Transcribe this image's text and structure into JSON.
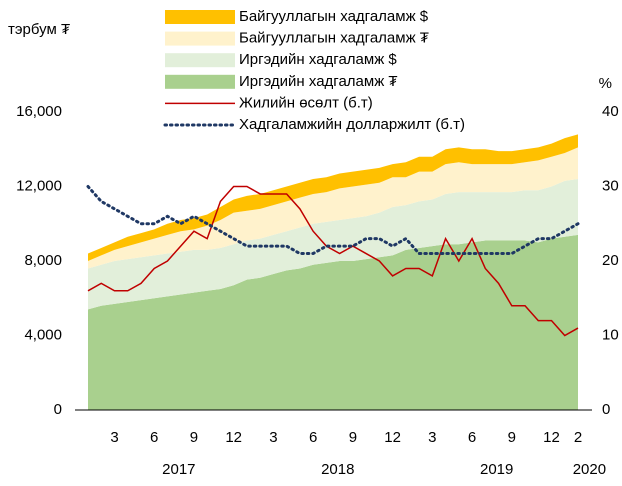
{
  "chart_data": {
    "type": "stacked_area_line",
    "y_label": "тэрбум ₮",
    "y2_label": "%",
    "categories": [
      null,
      null,
      "3",
      null,
      null,
      "6",
      null,
      null,
      "9",
      null,
      null,
      "12",
      null,
      null,
      "3",
      null,
      null,
      "6",
      null,
      null,
      "9",
      null,
      null,
      "12",
      null,
      null,
      "3",
      null,
      null,
      "6",
      null,
      null,
      "9",
      null,
      null,
      "12",
      null,
      "2"
    ],
    "years": [
      "2017",
      "2018",
      "2019",
      "2020"
    ],
    "ylim": [
      0,
      16000
    ],
    "yticks": [
      0,
      {
        "value": 4000,
        "label": "4,000"
      },
      {
        "value": 8000,
        "label": "8,000"
      },
      {
        "value": 12000,
        "label": "12,000"
      },
      {
        "value": 16000,
        "label": "16,000"
      }
    ],
    "y2lim": [
      0,
      40
    ],
    "y2ticks": [
      0,
      10,
      20,
      30,
      40
    ],
    "series": [
      {
        "name": "Иргэдийн хадгаламж ₮",
        "color": "#a9d08e",
        "kind": "area",
        "values": [
          5400,
          5600,
          5700,
          5800,
          5900,
          6000,
          6100,
          6200,
          6300,
          6400,
          6500,
          6700,
          7000,
          7100,
          7300,
          7500,
          7600,
          7800,
          7900,
          8000,
          8000,
          8100,
          8200,
          8300,
          8600,
          8700,
          8800,
          8900,
          8900,
          9000,
          9100,
          9100,
          9100,
          9100,
          9000,
          9200,
          9300,
          9400
        ]
      },
      {
        "name": "Иргэдийн хадгаламж $",
        "color": "#e2efda",
        "kind": "area",
        "values": [
          2200,
          2200,
          2300,
          2300,
          2300,
          2300,
          2300,
          2300,
          2300,
          2200,
          2200,
          2200,
          2100,
          2100,
          2100,
          2100,
          2200,
          2200,
          2200,
          2200,
          2300,
          2300,
          2400,
          2600,
          2400,
          2500,
          2500,
          2700,
          2800,
          2700,
          2600,
          2600,
          2600,
          2700,
          2800,
          2800,
          3000,
          3000
        ]
      },
      {
        "name": "Байгууллагын хадгаламж ₮",
        "color": "#fff2cc",
        "kind": "area",
        "values": [
          400,
          500,
          600,
          700,
          800,
          900,
          1000,
          1100,
          1100,
          1300,
          1500,
          1700,
          1600,
          1600,
          1600,
          1600,
          1600,
          1600,
          1600,
          1700,
          1700,
          1700,
          1600,
          1600,
          1500,
          1600,
          1500,
          1600,
          1600,
          1500,
          1500,
          1500,
          1500,
          1500,
          1600,
          1600,
          1500,
          1700
        ]
      },
      {
        "name": "Байгууллагын хадгаламж $",
        "color": "#ffc000",
        "kind": "area",
        "values": [
          400,
          400,
          400,
          500,
          500,
          500,
          600,
          600,
          600,
          600,
          700,
          700,
          800,
          800,
          800,
          800,
          800,
          800,
          800,
          800,
          800,
          800,
          800,
          700,
          800,
          800,
          800,
          800,
          800,
          800,
          800,
          700,
          700,
          700,
          700,
          700,
          800,
          700
        ]
      },
      {
        "name": "Жилийн өсөлт (б.т)",
        "color": "#c00000",
        "kind": "line",
        "axis": "y2",
        "values": [
          16,
          17,
          16,
          16,
          17,
          19,
          20,
          22,
          24,
          23,
          28,
          30,
          30,
          29,
          29,
          29,
          27,
          24,
          22,
          21,
          22,
          21,
          20,
          18,
          19,
          19,
          18,
          23,
          20,
          23,
          19,
          17,
          14,
          14,
          12,
          12,
          10,
          11
        ]
      },
      {
        "name": "Хадгаламжийн долларжилт (б.т)",
        "color": "#1f3864",
        "kind": "dotted",
        "axis": "y2",
        "values": [
          30,
          28,
          27,
          26,
          25,
          25,
          26,
          25,
          26,
          25,
          24,
          23,
          22,
          22,
          22,
          22,
          21,
          21,
          22,
          22,
          22,
          23,
          23,
          22,
          23,
          21,
          21,
          21,
          21,
          21,
          21,
          21,
          21,
          22,
          23,
          23,
          24,
          25
        ]
      }
    ],
    "legend_order": [
      3,
      2,
      1,
      0,
      4,
      5
    ]
  }
}
